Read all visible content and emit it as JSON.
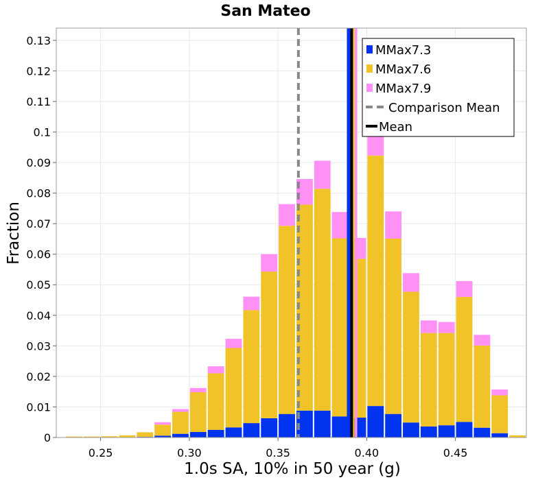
{
  "chart_data": {
    "type": "bar",
    "stacked": true,
    "title": "San Mateo",
    "xlabel": "1.0s SA, 10% in 50 year (g)",
    "ylabel": "Fraction",
    "xlim": [
      0.225,
      0.49
    ],
    "ylim": [
      0,
      0.134
    ],
    "grid": true,
    "legend_position": "top-right",
    "bin_width": 0.01,
    "x_ticks": [
      0.25,
      0.3,
      0.35,
      0.4,
      0.45
    ],
    "x_tick_labels": [
      "0.25",
      "0.30",
      "0.35",
      "0.40",
      "0.45"
    ],
    "y_ticks": [
      0,
      0.01,
      0.02,
      0.03,
      0.04,
      0.05,
      0.06,
      0.07,
      0.08,
      0.09,
      0.1,
      0.11,
      0.12,
      0.13
    ],
    "y_tick_labels": [
      "0",
      "0.01",
      "0.02",
      "0.03",
      "0.04",
      "0.05",
      "0.06",
      "0.07",
      "0.08",
      "0.09",
      "0.1",
      "0.11",
      "0.12",
      "0.13"
    ],
    "bin_centers": [
      0.235,
      0.245,
      0.255,
      0.265,
      0.275,
      0.285,
      0.295,
      0.305,
      0.315,
      0.325,
      0.335,
      0.345,
      0.355,
      0.365,
      0.375,
      0.385,
      0.395,
      0.405,
      0.415,
      0.425,
      0.435,
      0.445,
      0.455,
      0.465,
      0.475,
      0.485
    ],
    "series": [
      {
        "name": "MMax7.3",
        "color": "#0033ee",
        "values": [
          0,
          0,
          0,
          0,
          0.0002,
          0.0006,
          0.0012,
          0.0018,
          0.0025,
          0.0033,
          0.0047,
          0.0063,
          0.0077,
          0.0088,
          0.0088,
          0.0069,
          0.0065,
          0.0103,
          0.0077,
          0.0049,
          0.0036,
          0.004,
          0.0051,
          0.0032,
          0.0014,
          0
        ]
      },
      {
        "name": "MMax7.6",
        "color": "#f0c428",
        "values": [
          0.0003,
          0.0003,
          0.0004,
          0.0007,
          0.0015,
          0.0036,
          0.0072,
          0.013,
          0.0185,
          0.026,
          0.037,
          0.048,
          0.0616,
          0.0674,
          0.0726,
          0.0583,
          0.052,
          0.082,
          0.0574,
          0.0428,
          0.0306,
          0.0302,
          0.0409,
          0.0269,
          0.0124,
          0.0007
        ]
      },
      {
        "name": "MMax7.9",
        "color": "#ff90f4",
        "values": [
          0,
          0,
          0,
          0,
          0,
          0.0008,
          0.0009,
          0.0014,
          0.0023,
          0.003,
          0.0044,
          0.0057,
          0.0071,
          0.0084,
          0.0092,
          0.0086,
          0.0068,
          0.0087,
          0.0089,
          0.0061,
          0.0041,
          0.0036,
          0.0052,
          0.0035,
          0.0019,
          0
        ]
      }
    ],
    "lines": [
      {
        "name": "Comparison Mean",
        "x": 0.3615,
        "color": "#888888",
        "style": "dashed"
      },
      {
        "name": "Mean",
        "x": 0.3915,
        "color": "#000000",
        "style": "solid"
      }
    ],
    "extra_vertical_lines": [
      {
        "x": 0.3895,
        "color": "#0033ee"
      },
      {
        "x": 0.3905,
        "color": "#0033ee"
      },
      {
        "x": 0.3925,
        "color": "#f0c428"
      },
      {
        "x": 0.394,
        "color": "#ff90f4"
      }
    ]
  }
}
